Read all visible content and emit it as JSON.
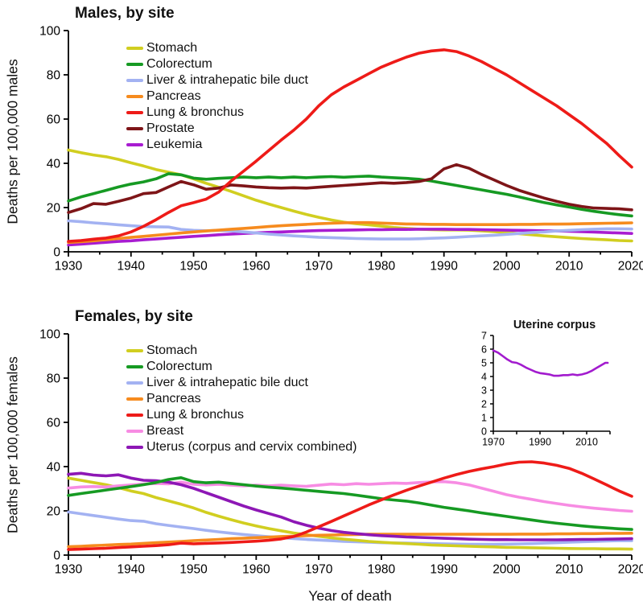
{
  "figure": {
    "xlabel": "Year of death",
    "background": "#ffffff",
    "text_color": "#111111"
  },
  "chart_data": [
    {
      "id": "males",
      "type": "line",
      "title": "Males, by site",
      "ylabel": "Deaths per 100,000 males",
      "ylim": [
        0,
        100
      ],
      "yticks": [
        0,
        20,
        40,
        60,
        80,
        100
      ],
      "xlim": [
        1930,
        2020
      ],
      "xticks": [
        1930,
        1940,
        1950,
        1960,
        1970,
        1980,
        1990,
        2000,
        2010,
        2020
      ],
      "xtick_minor_step": 5,
      "grid": false,
      "legend_position": "upper-left-inside",
      "draw_order": [
        "Stomach",
        "Leukemia",
        "Liver & intrahepatic bile duct",
        "Pancreas",
        "Colorectum",
        "Prostate",
        "Lung & bronchus"
      ],
      "series": [
        {
          "name": "Stomach",
          "color": "#d1ce20",
          "x_start": 1930,
          "x_step": 2,
          "y": [
            46.0,
            44.8,
            43.8,
            43.0,
            41.8,
            40.2,
            38.8,
            37.2,
            36.0,
            34.8,
            33.0,
            31.0,
            29.2,
            27.3,
            25.3,
            23.3,
            21.6,
            20.0,
            18.4,
            16.9,
            15.6,
            14.4,
            13.4,
            12.7,
            12.2,
            11.6,
            11.0,
            10.6,
            10.2,
            10.0,
            9.9,
            9.9,
            9.8,
            9.5,
            9.1,
            8.7,
            8.2,
            7.7,
            7.2,
            6.8,
            6.4,
            6.0,
            5.7,
            5.4,
            5.1,
            4.9
          ]
        },
        {
          "name": "Colorectum",
          "color": "#169a23",
          "x_start": 1930,
          "x_step": 2,
          "y": [
            23.0,
            24.8,
            26.3,
            27.8,
            29.3,
            30.6,
            31.6,
            33.0,
            35.3,
            34.8,
            33.3,
            32.8,
            33.2,
            33.5,
            33.8,
            33.5,
            33.8,
            33.5,
            33.8,
            33.5,
            33.8,
            34.0,
            33.7,
            34.0,
            34.2,
            33.8,
            33.5,
            33.2,
            32.8,
            32.0,
            31.0,
            30.0,
            29.0,
            28.0,
            27.0,
            26.0,
            24.8,
            23.5,
            22.3,
            21.2,
            20.2,
            19.2,
            18.3,
            17.5,
            16.8,
            16.2
          ]
        },
        {
          "name": "Liver & intrahepatic bile duct",
          "color": "#a3b2f2",
          "x_start": 1930,
          "x_step": 2,
          "y": [
            14.0,
            13.6,
            13.1,
            12.7,
            12.2,
            11.8,
            11.4,
            11.3,
            11.2,
            10.1,
            9.7,
            9.5,
            9.7,
            9.4,
            9.0,
            8.5,
            8.0,
            7.6,
            7.2,
            6.9,
            6.6,
            6.4,
            6.2,
            6.0,
            5.9,
            5.8,
            5.8,
            5.8,
            5.9,
            6.1,
            6.3,
            6.6,
            6.9,
            7.2,
            7.5,
            7.9,
            8.3,
            8.7,
            9.0,
            9.4,
            9.7,
            10.0,
            10.2,
            10.4,
            10.4,
            10.3
          ]
        },
        {
          "name": "Pancreas",
          "color": "#f68b1e",
          "x_start": 1930,
          "x_step": 2,
          "y": [
            4.2,
            4.6,
            5.0,
            5.5,
            6.0,
            6.5,
            7.0,
            7.5,
            8.0,
            8.5,
            9.0,
            9.4,
            9.8,
            10.2,
            10.6,
            11.0,
            11.4,
            11.8,
            12.1,
            12.4,
            12.7,
            12.9,
            13.1,
            13.2,
            13.2,
            13.0,
            12.8,
            12.6,
            12.5,
            12.4,
            12.4,
            12.3,
            12.3,
            12.3,
            12.3,
            12.3,
            12.4,
            12.4,
            12.5,
            12.5,
            12.6,
            12.7,
            12.8,
            12.9,
            13.0,
            13.1
          ]
        },
        {
          "name": "Lung & bronchus",
          "color": "#ee1b18",
          "x_start": 1930,
          "x_step": 2,
          "y": [
            4.7,
            5.1,
            5.7,
            6.2,
            7.2,
            9.0,
            11.5,
            14.5,
            17.8,
            20.8,
            22.2,
            23.8,
            27.0,
            32.0,
            36.5,
            41.0,
            45.8,
            50.5,
            55.0,
            60.0,
            66.0,
            71.0,
            74.5,
            77.5,
            80.5,
            83.5,
            85.8,
            88.0,
            89.8,
            90.8,
            91.3,
            90.5,
            88.5,
            86.0,
            83.0,
            80.0,
            76.5,
            73.0,
            69.5,
            66.0,
            62.0,
            58.0,
            53.5,
            49.0,
            43.5,
            38.3
          ]
        },
        {
          "name": "Prostate",
          "color": "#7e1518",
          "x_start": 1930,
          "x_step": 2,
          "y": [
            17.8,
            19.5,
            21.8,
            21.5,
            22.8,
            24.3,
            26.3,
            26.8,
            29.3,
            31.8,
            30.3,
            28.3,
            28.8,
            30.2,
            29.8,
            29.3,
            29.0,
            28.8,
            29.0,
            28.8,
            29.2,
            29.6,
            30.0,
            30.4,
            30.8,
            31.2,
            31.0,
            31.3,
            31.8,
            33.0,
            37.5,
            39.4,
            37.8,
            35.0,
            32.5,
            30.0,
            27.8,
            26.0,
            24.3,
            22.8,
            21.5,
            20.5,
            19.8,
            19.6,
            19.4,
            19.0
          ]
        },
        {
          "name": "Leukemia",
          "color": "#a81cd1",
          "x_start": 1930,
          "x_step": 2,
          "y": [
            3.1,
            3.5,
            3.9,
            4.3,
            4.7,
            5.0,
            5.4,
            5.8,
            6.2,
            6.6,
            7.0,
            7.3,
            7.7,
            8.0,
            8.3,
            8.6,
            8.8,
            9.0,
            9.2,
            9.4,
            9.6,
            9.7,
            9.8,
            9.9,
            10.0,
            10.0,
            10.1,
            10.1,
            10.2,
            10.2,
            10.2,
            10.1,
            10.1,
            10.0,
            9.9,
            9.8,
            9.7,
            9.6,
            9.5,
            9.4,
            9.3,
            9.1,
            8.9,
            8.7,
            8.5,
            8.3
          ]
        }
      ]
    },
    {
      "id": "females",
      "type": "line",
      "title": "Females, by site",
      "ylabel": "Deaths per 100,000 females",
      "ylim": [
        0,
        100
      ],
      "yticks": [
        0,
        20,
        40,
        60,
        80,
        100
      ],
      "xlim": [
        1930,
        2020
      ],
      "xticks": [
        1930,
        1940,
        1950,
        1960,
        1970,
        1980,
        1990,
        2000,
        2010,
        2020
      ],
      "xtick_minor_step": 5,
      "grid": false,
      "legend_position": "upper-left-inside",
      "draw_order": [
        "Liver & intrahepatic bile duct",
        "Stomach",
        "Pancreas",
        "Breast",
        "Uterus (corpus and cervix combined)",
        "Colorectum",
        "Lung & bronchus"
      ],
      "series": [
        {
          "name": "Stomach",
          "color": "#d1ce20",
          "x_start": 1930,
          "x_step": 2,
          "y": [
            34.8,
            33.8,
            32.8,
            31.8,
            30.5,
            29.0,
            27.8,
            26.0,
            24.5,
            23.0,
            21.3,
            19.3,
            17.6,
            16.0,
            14.5,
            13.2,
            12.0,
            11.0,
            10.0,
            9.2,
            8.5,
            7.8,
            7.2,
            6.7,
            6.2,
            5.8,
            5.5,
            5.2,
            4.9,
            4.6,
            4.4,
            4.2,
            4.0,
            3.8,
            3.7,
            3.5,
            3.4,
            3.3,
            3.2,
            3.1,
            3.0,
            2.9,
            2.9,
            2.8,
            2.8,
            2.7
          ]
        },
        {
          "name": "Colorectum",
          "color": "#169a23",
          "x_start": 1930,
          "x_step": 2,
          "y": [
            27.0,
            27.8,
            28.6,
            29.4,
            30.2,
            31.0,
            31.8,
            32.8,
            34.2,
            35.0,
            33.2,
            32.7,
            33.0,
            32.4,
            31.8,
            31.2,
            30.7,
            30.3,
            29.8,
            29.3,
            28.8,
            28.3,
            27.8,
            27.1,
            26.3,
            25.5,
            24.9,
            24.4,
            23.6,
            22.6,
            21.6,
            20.8,
            20.0,
            19.1,
            18.3,
            17.5,
            16.7,
            15.9,
            15.1,
            14.4,
            13.8,
            13.2,
            12.7,
            12.3,
            11.9,
            11.6
          ]
        },
        {
          "name": "Liver & intrahepatic bile duct",
          "color": "#a3b2f2",
          "x_start": 1930,
          "x_step": 2,
          "y": [
            19.5,
            18.7,
            17.9,
            17.1,
            16.3,
            15.6,
            15.3,
            14.2,
            13.4,
            12.7,
            12.0,
            11.2,
            10.5,
            9.9,
            9.3,
            8.8,
            8.3,
            7.9,
            7.5,
            7.1,
            6.8,
            6.5,
            6.2,
            6.0,
            5.8,
            5.6,
            5.5,
            5.4,
            5.3,
            5.2,
            5.1,
            5.0,
            4.9,
            4.9,
            4.9,
            5.0,
            5.1,
            5.2,
            5.4,
            5.6,
            5.8,
            6.0,
            6.2,
            6.4,
            6.5,
            6.5
          ]
        },
        {
          "name": "Pancreas",
          "color": "#f68b1e",
          "x_start": 1930,
          "x_step": 2,
          "y": [
            3.8,
            4.0,
            4.3,
            4.5,
            4.8,
            5.0,
            5.3,
            5.6,
            5.9,
            6.2,
            6.5,
            6.8,
            7.1,
            7.4,
            7.6,
            7.9,
            8.1,
            8.4,
            8.6,
            8.8,
            9.0,
            9.1,
            9.2,
            9.3,
            9.4,
            9.4,
            9.4,
            9.4,
            9.4,
            9.4,
            9.4,
            9.4,
            9.4,
            9.4,
            9.4,
            9.4,
            9.5,
            9.5,
            9.5,
            9.6,
            9.6,
            9.7,
            9.7,
            9.8,
            9.8,
            9.9
          ]
        },
        {
          "name": "Lung & bronchus",
          "color": "#ee1b18",
          "x_start": 1930,
          "x_step": 2,
          "y": [
            2.5,
            2.7,
            2.9,
            3.1,
            3.4,
            3.7,
            4.0,
            4.3,
            4.7,
            5.4,
            5.1,
            5.3,
            5.5,
            5.7,
            6.0,
            6.3,
            6.7,
            7.3,
            8.4,
            10.4,
            12.8,
            15.2,
            17.7,
            20.2,
            22.7,
            25.0,
            27.2,
            29.3,
            31.2,
            33.0,
            34.8,
            36.4,
            37.8,
            39.0,
            40.0,
            41.2,
            42.0,
            42.2,
            41.6,
            40.6,
            39.2,
            37.0,
            34.4,
            31.7,
            29.0,
            26.6
          ]
        },
        {
          "name": "Breast",
          "color": "#f78ce3",
          "x_start": 1930,
          "x_step": 2,
          "y": [
            30.3,
            30.8,
            31.0,
            30.8,
            31.3,
            31.7,
            32.1,
            32.4,
            32.2,
            33.0,
            32.0,
            31.7,
            32.0,
            31.6,
            31.3,
            31.6,
            31.3,
            31.6,
            31.3,
            31.1,
            31.6,
            32.1,
            31.8,
            32.3,
            32.0,
            32.3,
            32.6,
            32.4,
            32.8,
            33.1,
            33.2,
            32.7,
            31.7,
            30.3,
            28.8,
            27.3,
            26.2,
            25.2,
            24.2,
            23.3,
            22.5,
            21.8,
            21.2,
            20.7,
            20.2,
            19.8
          ]
        },
        {
          "name": "Uterus (corpus and cervix combined)",
          "color": "#8d17b5",
          "x_start": 1930,
          "x_step": 2,
          "y": [
            36.5,
            37.0,
            36.2,
            35.8,
            36.3,
            34.8,
            33.8,
            33.6,
            33.0,
            31.8,
            30.2,
            28.2,
            26.2,
            24.2,
            22.2,
            20.4,
            18.8,
            17.2,
            15.1,
            13.5,
            12.2,
            11.1,
            10.3,
            9.7,
            9.2,
            8.8,
            8.5,
            8.2,
            8.0,
            7.8,
            7.6,
            7.4,
            7.2,
            7.1,
            7.0,
            7.0,
            6.9,
            6.9,
            6.9,
            6.9,
            7.0,
            7.1,
            7.1,
            7.2,
            7.3,
            7.4
          ]
        }
      ]
    },
    {
      "id": "uterine-corpus",
      "type": "line",
      "title": "Uterine corpus",
      "ylabel": "",
      "ylim": [
        0,
        7
      ],
      "yticks": [
        0,
        1,
        2,
        3,
        4,
        5,
        6,
        7
      ],
      "xlim": [
        1970,
        2020
      ],
      "xticks": [
        1970,
        1990,
        2010
      ],
      "xtick_minor_step": 10,
      "grid": false,
      "legend_position": "none",
      "draw_order": [
        "Uterine corpus"
      ],
      "series": [
        {
          "name": "Uterine corpus",
          "color": "#a21bce",
          "x": [
            1970,
            1972,
            1974,
            1976,
            1978,
            1980,
            1982,
            1984,
            1986,
            1988,
            1990,
            1992,
            1994,
            1996,
            1998,
            2000,
            2002,
            2004,
            2006,
            2008,
            2010,
            2012,
            2014,
            2016,
            2018,
            2019
          ],
          "y": [
            5.9,
            5.75,
            5.5,
            5.25,
            5.05,
            5.0,
            4.85,
            4.65,
            4.5,
            4.35,
            4.25,
            4.2,
            4.15,
            4.05,
            4.05,
            4.1,
            4.1,
            4.15,
            4.1,
            4.15,
            4.25,
            4.4,
            4.6,
            4.8,
            5.0,
            5.0
          ]
        }
      ]
    }
  ]
}
